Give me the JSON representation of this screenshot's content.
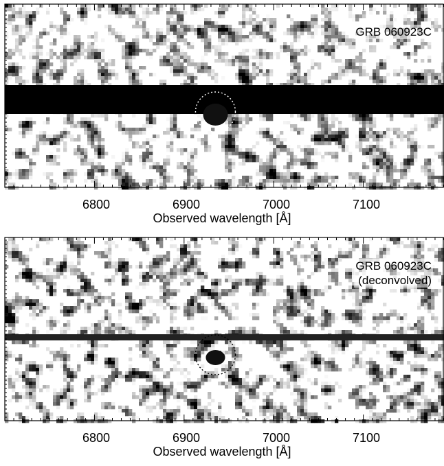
{
  "figure": {
    "panels": [
      {
        "label_lines": [
          "GRB 060923C"
        ],
        "xlabel": "Observed wavelength [Å]",
        "tick_labels": [
          "6800",
          "6900",
          "7000",
          "7100"
        ]
      },
      {
        "label_lines": [
          "GRB 060923C",
          "(deconvolved)"
        ],
        "xlabel": "Observed wavelength [Å]",
        "tick_labels": [
          "6800",
          "6900",
          "7000",
          "7100"
        ]
      }
    ]
  },
  "chart_data": [
    {
      "type": "heatmap",
      "title": "",
      "label": "GRB 060923C",
      "xlabel": "Observed wavelength [Å]",
      "x_ticks": [
        6800,
        6900,
        7000,
        7100
      ],
      "xlim": [
        6700,
        7190
      ],
      "trace": "strong dark horizontal continuum trace",
      "circle_center_wavelength": 6935
    },
    {
      "type": "heatmap",
      "title": "",
      "label": "GRB 060923C (deconvolved)",
      "xlabel": "Observed wavelength [Å]",
      "x_ticks": [
        6800,
        6900,
        7000,
        7100
      ],
      "xlim": [
        6700,
        7190
      ],
      "trace": "thin horizontal trace",
      "circle_center_wavelength": 6935
    }
  ]
}
